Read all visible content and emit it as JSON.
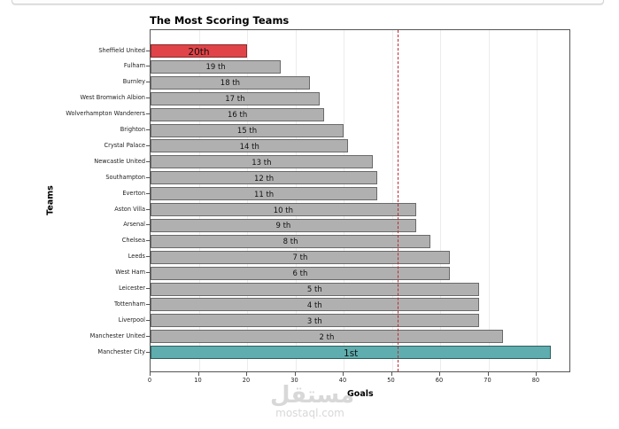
{
  "chart_data": {
    "type": "bar",
    "orientation": "horizontal",
    "title": "The Most Scoring Teams",
    "xlabel": "Goals",
    "ylabel": "Teams",
    "xlim": [
      0,
      87
    ],
    "xticks": [
      0,
      10,
      20,
      30,
      40,
      50,
      60,
      70,
      80
    ],
    "grid": "vertical",
    "legend": null,
    "reference_line": {
      "x": 51.2,
      "style": "dashed",
      "color": "#c0282d"
    },
    "categories": [
      "Sheffield United",
      "Fulham",
      "Burnley",
      "West Bromwich Albion",
      "Wolverhampton Wanderers",
      "Brighton",
      "Crystal Palace",
      "Newcastle United",
      "Southampton",
      "Everton",
      "Aston Villa",
      "Arsenal",
      "Chelsea",
      "Leeds",
      "West Ham",
      "Leicester",
      "Tottenham",
      "Liverpool",
      "Manchester United",
      "Manchester City"
    ],
    "values": [
      20,
      27,
      33,
      35,
      36,
      40,
      41,
      46,
      47,
      47,
      55,
      55,
      58,
      62,
      62,
      68,
      68,
      68,
      73,
      83
    ],
    "bar_labels": [
      "20th",
      "19 th",
      "18 th",
      "17 th",
      "16 th",
      "15 th",
      "14 th",
      "13 th",
      "12 th",
      "11 th",
      "10 th",
      "9 th",
      "8 th",
      "7 th",
      "6 th",
      "5 th",
      "4 th",
      "3 th",
      "2 th",
      "1st"
    ],
    "colors": {
      "default": "#b0b0b0",
      "last": "#e04448",
      "first": "#5fadae"
    }
  },
  "watermark": {
    "arabic": "مستقل",
    "latin": "mostaql.com"
  }
}
